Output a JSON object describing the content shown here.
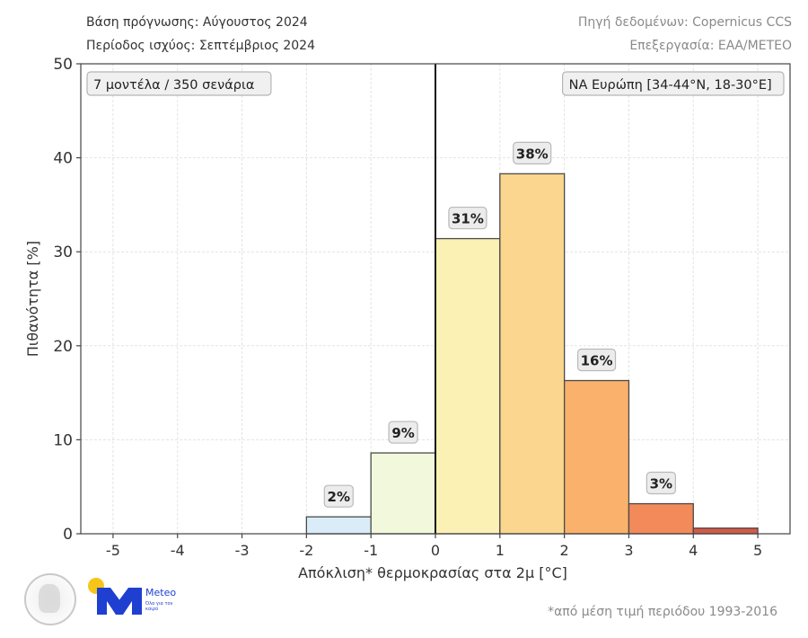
{
  "header": {
    "forecast_base": "Βάση πρόγνωσης: Αύγουστος 2024",
    "valid_period": "Περίοδος ισχύος: Σεπτέμβριος 2024",
    "data_source": "Πηγή δεδομένων: Copernicus CCS",
    "processing": "Επεξεργασία: ΕΑΑ/METEO"
  },
  "annotations": {
    "models_box": "7 μοντέλα / 350 σενάρια",
    "region_box": "ΝΑ Ευρώπη [34-44°N, 18-30°E]"
  },
  "footer": {
    "footnote": "*από μέση τιμή περιόδου 1993-2016",
    "logo_meteo_text": "Meteo",
    "logo_meteo_sub": "Όλα για τον καιρό"
  },
  "chart_data": {
    "type": "bar",
    "title": "",
    "xlabel": "Απόκλιση* θερμοκρασίας στα 2μ [°C]",
    "ylabel": "Πιθανότητα [%]",
    "xlim": [
      -5.5,
      5.5
    ],
    "ylim": [
      0,
      50
    ],
    "xticks": [
      -5,
      -4,
      -3,
      -2,
      -1,
      0,
      1,
      2,
      3,
      4,
      5
    ],
    "yticks": [
      0,
      10,
      20,
      30,
      40,
      50
    ],
    "grid": true,
    "zero_line": 0,
    "bins": [
      {
        "from": -2,
        "to": -1,
        "value": 1.8,
        "label": "2%",
        "color": "#d9ecf7"
      },
      {
        "from": -1,
        "to": 0,
        "value": 8.6,
        "label": "9%",
        "color": "#f2f8db"
      },
      {
        "from": 0,
        "to": 1,
        "value": 31.4,
        "label": "31%",
        "color": "#fcf1b5"
      },
      {
        "from": 1,
        "to": 2,
        "value": 38.3,
        "label": "38%",
        "color": "#fbd68f"
      },
      {
        "from": 2,
        "to": 3,
        "value": 16.3,
        "label": "16%",
        "color": "#f9b16b"
      },
      {
        "from": 3,
        "to": 4,
        "value": 3.2,
        "label": "3%",
        "color": "#f28a5a"
      },
      {
        "from": 4,
        "to": 5,
        "value": 0.6,
        "label": "",
        "color": "#d35a48"
      }
    ]
  }
}
